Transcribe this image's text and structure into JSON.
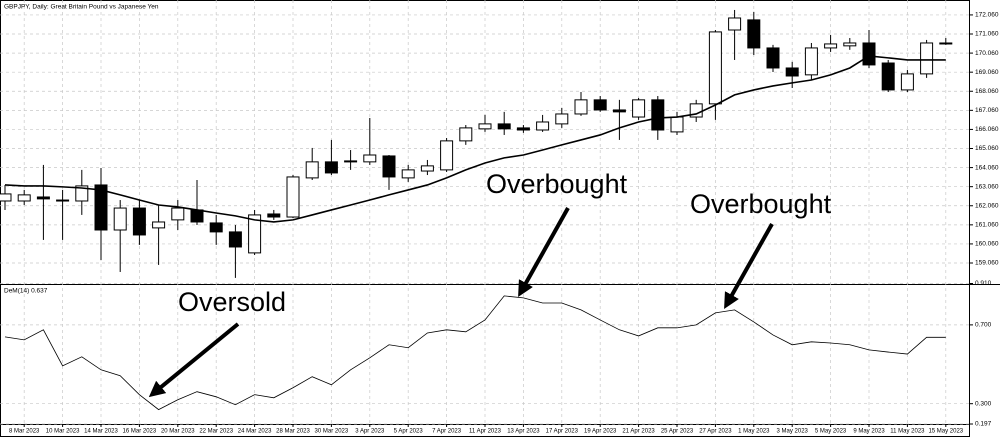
{
  "chart_data": [
    {
      "type": "candlestick",
      "title": "GBPJPY, Daily:  Great Britain Pound vs Japanese Yen",
      "open": [
        162.31,
        162.31,
        162.52,
        162.36,
        162.31,
        163.15,
        160.79,
        161.94,
        160.9,
        161.32,
        161.84,
        161.16,
        160.69,
        159.59,
        161.63,
        161.47,
        163.52,
        164.36,
        164.41,
        164.36,
        164.67,
        163.52,
        163.88,
        163.94,
        165.46,
        166.09,
        166.35,
        166.14,
        166.03,
        166.35,
        166.87,
        167.61,
        167.08,
        166.71,
        167.61,
        165.93,
        166.71,
        167.4,
        171.27,
        171.8,
        170.33,
        169.28,
        168.92,
        170.33,
        170.44,
        170.59,
        169.54,
        168.13,
        168.97,
        170.59
      ],
      "high": [
        163.15,
        162.89,
        164.2,
        162.89,
        163.94,
        164.04,
        162.36,
        162.36,
        162.1,
        162.36,
        163.41,
        161.58,
        161.05,
        161.84,
        161.84,
        163.67,
        165.09,
        165.51,
        164.98,
        166.66,
        164.72,
        164.2,
        164.46,
        165.61,
        166.29,
        166.82,
        166.98,
        166.29,
        166.82,
        167.19,
        168.02,
        167.81,
        167.61,
        167.71,
        167.81,
        166.98,
        167.61,
        171.27,
        172.32,
        172.22,
        170.49,
        169.6,
        170.59,
        171.01,
        170.85,
        171.27,
        169.7,
        169.18,
        170.75,
        170.85
      ],
      "low": [
        161.84,
        162.1,
        160.27,
        160.27,
        161.58,
        159.22,
        158.59,
        160.01,
        158.96,
        160.79,
        161.05,
        160.01,
        158.28,
        159.48,
        161.32,
        161.42,
        163.41,
        163.67,
        163.94,
        164.2,
        162.89,
        163.31,
        163.67,
        163.83,
        165.25,
        165.93,
        165.77,
        165.88,
        165.93,
        166.14,
        166.77,
        166.98,
        165.51,
        166.56,
        165.51,
        165.77,
        166.45,
        166.56,
        169.7,
        169.96,
        169.07,
        168.23,
        168.65,
        170.12,
        170.23,
        169.28,
        168.02,
        168.02,
        168.76,
        170.49
      ],
      "close": [
        162.68,
        162.63,
        162.42,
        162.36,
        163.1,
        160.79,
        161.94,
        160.53,
        161.21,
        161.94,
        161.21,
        160.69,
        159.9,
        161.58,
        161.47,
        163.57,
        164.36,
        163.78,
        164.36,
        164.72,
        163.57,
        163.94,
        164.15,
        165.46,
        166.14,
        166.35,
        166.09,
        166.03,
        166.45,
        166.87,
        167.61,
        167.08,
        166.98,
        167.61,
        166.03,
        166.71,
        167.4,
        171.17,
        171.9,
        170.33,
        169.28,
        168.86,
        170.33,
        170.54,
        170.59,
        169.44,
        168.13,
        168.97,
        170.59,
        170.59
      ],
      "up_color": "#ffffff",
      "down_color": "#000000",
      "overlay": {
        "color": "#000000",
        "values": [
          163.15,
          163.1,
          163.1,
          163.05,
          162.99,
          162.89,
          162.63,
          162.36,
          162.1,
          162.0,
          161.84,
          161.68,
          161.53,
          161.32,
          161.21,
          161.32,
          161.58,
          161.84,
          162.1,
          162.36,
          162.63,
          162.89,
          163.15,
          163.52,
          163.94,
          164.3,
          164.57,
          164.72,
          164.98,
          165.25,
          165.51,
          165.77,
          166.14,
          166.45,
          166.66,
          166.71,
          166.87,
          167.34,
          167.87,
          168.13,
          168.34,
          168.5,
          168.65,
          168.92,
          169.28,
          169.91,
          169.81,
          169.7,
          169.7,
          169.7
        ]
      },
      "ylim": [
        157.96,
        172.58
      ],
      "yticks": [
        {
          "value": 172.06,
          "label": "172.060"
        },
        {
          "value": 171.06,
          "label": "171.060"
        },
        {
          "value": 170.06,
          "label": "170.060"
        },
        {
          "value": 169.06,
          "label": "169.060"
        },
        {
          "value": 168.06,
          "label": "168.060"
        },
        {
          "value": 167.06,
          "label": "167.060"
        },
        {
          "value": 166.06,
          "label": "166.060"
        },
        {
          "value": 165.06,
          "label": "165.060"
        },
        {
          "value": 164.06,
          "label": "164.060"
        },
        {
          "value": 163.06,
          "label": "163.060"
        },
        {
          "value": 162.06,
          "label": "162.060"
        },
        {
          "value": 161.06,
          "label": "161.060"
        },
        {
          "value": 160.06,
          "label": "160.060"
        },
        {
          "value": 159.06,
          "label": "159.060"
        }
      ],
      "grid": true
    },
    {
      "type": "line",
      "title": "DeM(14) 0.637",
      "categories": [
        null,
        "8 Mar 2023",
        null,
        "10 Mar 2023",
        null,
        "14 Mar 2023",
        null,
        "16 Mar 2023",
        null,
        "20 Mar 2023",
        null,
        "22 Mar 2023",
        null,
        "24 Mar 2023",
        null,
        "28 Mar 2023",
        null,
        "30 Mar 2023",
        null,
        "3 Apr 2023",
        null,
        "5 Apr 2023",
        null,
        "7 Apr 2023",
        null,
        "11 Apr 2023",
        null,
        "13 Apr 2023",
        null,
        "17 Apr 2023",
        null,
        "19 Apr 2023",
        null,
        "21 Apr 2023",
        null,
        "25 Apr 2023",
        null,
        "27 Apr 2023",
        null,
        "1 May 2023",
        null,
        "3 May 2023",
        null,
        "5 May 2023",
        null,
        "9 May 2023",
        null,
        "11 May 2023",
        null,
        "15 May 2023"
      ],
      "series": [
        {
          "name": "DeM(14)",
          "color": "#000000",
          "values": [
            0.639,
            0.624,
            0.675,
            0.492,
            0.538,
            0.472,
            0.442,
            0.346,
            0.27,
            0.32,
            0.361,
            0.335,
            0.295,
            0.346,
            0.33,
            0.381,
            0.437,
            0.396,
            0.472,
            0.533,
            0.599,
            0.584,
            0.659,
            0.675,
            0.665,
            0.725,
            0.847,
            0.837,
            0.811,
            0.811,
            0.776,
            0.725,
            0.675,
            0.644,
            0.685,
            0.685,
            0.7,
            0.761,
            0.776,
            0.715,
            0.649,
            0.599,
            0.614,
            0.608,
            0.599,
            0.573,
            0.562,
            0.552,
            0.637,
            0.637
          ]
        }
      ],
      "ylim": [
        0.197,
        0.91
      ],
      "yticks": [
        {
          "value": 0.91,
          "label": "0.910"
        },
        {
          "value": 0.7,
          "label": "0.700"
        },
        {
          "value": 0.3,
          "label": "0.300"
        },
        {
          "value": 0.197,
          "label": "0.197"
        }
      ],
      "grid": true
    }
  ],
  "annotations": [
    "Oversold",
    "Overbought",
    "Overbought"
  ]
}
